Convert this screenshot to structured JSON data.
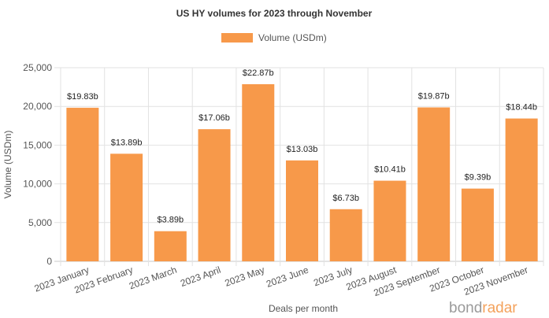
{
  "chart_data": {
    "type": "bar",
    "title": "US HY volumes for 2023 through November",
    "xlabel": "Deals per month",
    "ylabel": "Volume (USDm)",
    "ylim": [
      0,
      25000
    ],
    "yticks": [
      "0",
      "5,000",
      "10,000",
      "15,000",
      "20,000",
      "25,000"
    ],
    "ytick_values": [
      0,
      5000,
      10000,
      15000,
      20000,
      25000
    ],
    "grid": true,
    "legend_position": "top-center",
    "categories": [
      "2023 January",
      "2023 February",
      "2023 March",
      "2023 April",
      "2023 May",
      "2023 June",
      "2023 July",
      "2023 August",
      "2023 September",
      "2023 October",
      "2023 November"
    ],
    "series": [
      {
        "name": "Volume (USDm)",
        "color": "#f7994a",
        "values": [
          19830,
          13890,
          3890,
          17060,
          22870,
          13030,
          6730,
          10410,
          19870,
          9390,
          18440
        ],
        "labels": [
          "$19.83b",
          "$13.89b",
          "$3.89b",
          "$17.06b",
          "$22.87b",
          "$13.03b",
          "$6.73b",
          "$10.41b",
          "$19.87b",
          "$9.39b",
          "$18.44b"
        ]
      }
    ]
  },
  "branding": {
    "part1": "bond",
    "part2": "radar"
  }
}
